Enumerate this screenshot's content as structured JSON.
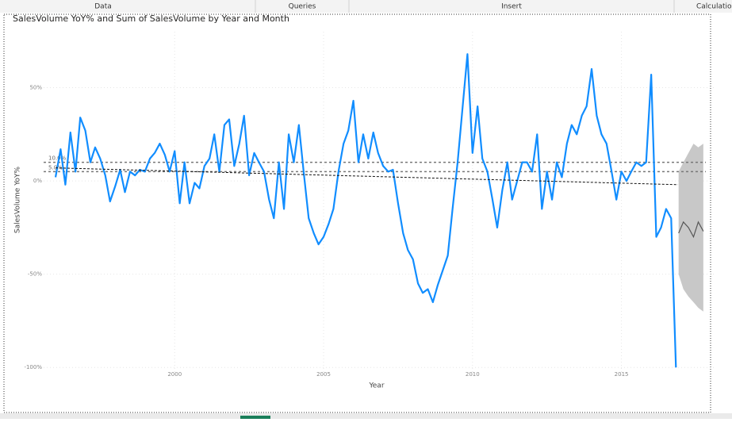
{
  "ribbon": {
    "tabs": [
      "Data",
      "Queries",
      "Insert",
      "Calculatio"
    ]
  },
  "chart_data": {
    "type": "line",
    "title": "SalesVolume YoY% and Sum of SalesVolume by Year and Month",
    "x_label": "Year",
    "y_label": "SalesVolume YoY%",
    "xlim": [
      1995.6,
      2018.1
    ],
    "xticks": [
      2000,
      2005,
      2010,
      2015
    ],
    "ylim": [
      -105,
      80
    ],
    "yticks": [
      {
        "value": 50,
        "label": "50%"
      },
      {
        "value": 0,
        "label": "0%"
      },
      {
        "value": -50,
        "label": "-50%"
      },
      {
        "value": -100,
        "label": "-100%"
      }
    ],
    "grid": true,
    "x": [
      1996,
      1996.17,
      1996.33,
      1996.5,
      1996.67,
      1996.83,
      1997,
      1997.17,
      1997.33,
      1997.5,
      1997.67,
      1997.83,
      1998,
      1998.17,
      1998.33,
      1998.5,
      1998.67,
      1998.83,
      1999,
      1999.17,
      1999.33,
      1999.5,
      1999.67,
      1999.83,
      2000,
      2000.17,
      2000.33,
      2000.5,
      2000.67,
      2000.83,
      2001,
      2001.17,
      2001.33,
      2001.5,
      2001.67,
      2001.83,
      2002,
      2002.17,
      2002.33,
      2002.5,
      2002.67,
      2002.83,
      2003,
      2003.17,
      2003.33,
      2003.5,
      2003.67,
      2003.83,
      2004,
      2004.17,
      2004.33,
      2004.5,
      2004.67,
      2004.83,
      2005,
      2005.17,
      2005.33,
      2005.5,
      2005.67,
      2005.83,
      2006,
      2006.17,
      2006.33,
      2006.5,
      2006.67,
      2006.83,
      2007,
      2007.17,
      2007.33,
      2007.5,
      2007.67,
      2007.83,
      2008,
      2008.17,
      2008.33,
      2008.5,
      2008.67,
      2008.83,
      2009,
      2009.17,
      2009.33,
      2009.5,
      2009.67,
      2009.83,
      2010,
      2010.17,
      2010.33,
      2010.5,
      2010.67,
      2010.83,
      2011,
      2011.17,
      2011.33,
      2011.5,
      2011.67,
      2011.83,
      2012,
      2012.17,
      2012.33,
      2012.5,
      2012.67,
      2012.83,
      2013,
      2013.17,
      2013.33,
      2013.5,
      2013.67,
      2013.83,
      2014,
      2014.17,
      2014.33,
      2014.5,
      2014.67,
      2014.83,
      2015,
      2015.17,
      2015.33,
      2015.5,
      2015.67,
      2015.83,
      2016,
      2016.17,
      2016.33,
      2016.5,
      2016.67,
      2016.83
    ],
    "series": [
      {
        "color": "#118dff",
        "values": [
          2,
          17,
          -2,
          26,
          5,
          34,
          27,
          10,
          18,
          12,
          3,
          -11,
          -3,
          6,
          -6,
          5,
          3,
          6,
          5,
          12,
          15,
          20,
          14,
          5,
          16,
          -12,
          10,
          -12,
          -1,
          -4,
          8,
          12,
          25,
          5,
          30,
          33,
          8,
          20,
          35,
          3,
          15,
          10,
          5,
          -10,
          -20,
          10,
          -15,
          25,
          10,
          30,
          5,
          -20,
          -28,
          -34,
          -30,
          -23,
          -15,
          5,
          20,
          27,
          43,
          10,
          25,
          12,
          26,
          15,
          8,
          5,
          6,
          -12,
          -28,
          -37,
          -42,
          -55,
          -60,
          -58,
          -65,
          -56,
          -48,
          -40,
          -15,
          10,
          40,
          68,
          15,
          40,
          12,
          5,
          -10,
          -25,
          -5,
          10,
          -10,
          0,
          10,
          10,
          5,
          25,
          -15,
          5,
          -10,
          10,
          2,
          20,
          30,
          25,
          35,
          40,
          60,
          35,
          25,
          20,
          5,
          -10,
          5,
          0,
          5,
          10,
          8,
          10,
          57,
          -30,
          -25,
          -15,
          -20,
          -100
        ]
      }
    ],
    "forecast": {
      "color": "#555555",
      "band_color": "#c8c8c8",
      "x": [
        2016.92,
        2017.08,
        2017.25,
        2017.42,
        2017.58,
        2017.75
      ],
      "values": [
        -28,
        -22,
        -25,
        -30,
        -22,
        -27
      ],
      "upper": [
        5,
        10,
        15,
        20,
        18,
        20
      ],
      "lower": [
        -50,
        -58,
        -62,
        -65,
        -68,
        -70
      ]
    },
    "reference_lines": [
      {
        "value": 10,
        "label": "10.0%"
      },
      {
        "value": 5,
        "label": "5.0%"
      }
    ],
    "trend": {
      "x": [
        1996,
        2016.9
      ],
      "values": [
        7,
        -2
      ]
    }
  }
}
